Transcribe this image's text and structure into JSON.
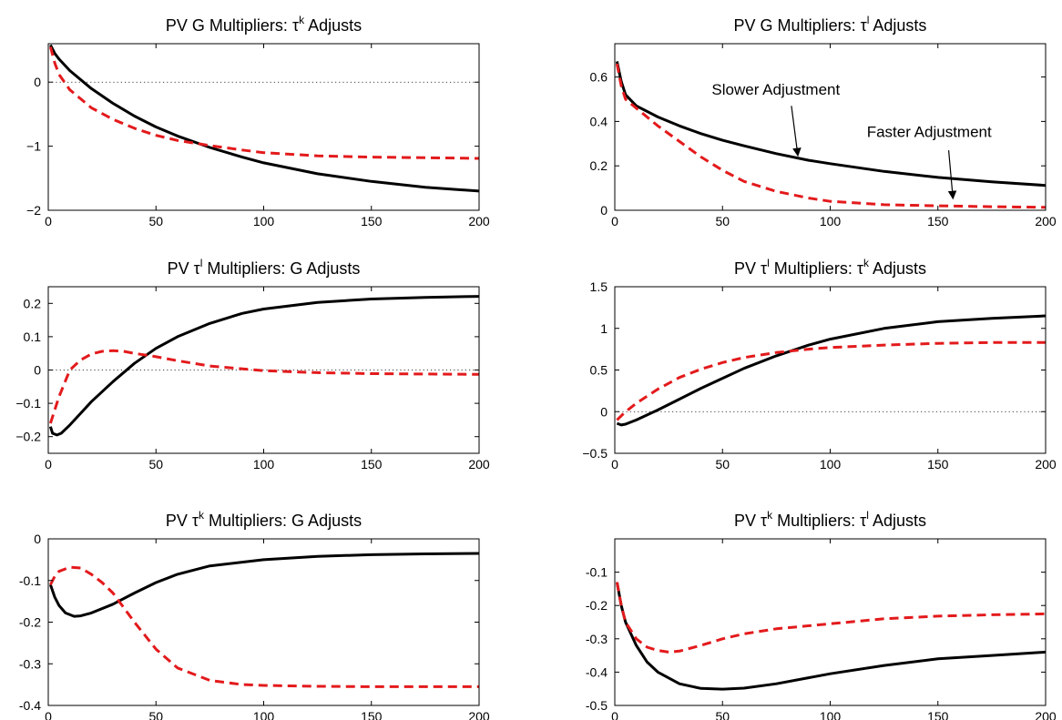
{
  "colors": {
    "series_solid": "#000000",
    "series_dashed": "#e31a1c",
    "zero_line": "#000000"
  },
  "chart_data": [
    {
      "type": "line",
      "title": {
        "pre": "PV G Multipliers: ",
        "sym": "τ",
        "sup": "k",
        "post": " Adjusts"
      },
      "xlim": [
        0,
        200
      ],
      "ylim": [
        -2,
        0.6
      ],
      "xticks": [
        0,
        50,
        100,
        150,
        200
      ],
      "yticks": [
        -2,
        -1,
        0
      ],
      "ytick_labels": [
        "−2",
        "−1",
        "0"
      ],
      "zero_line": true,
      "series": [
        {
          "style": "solid",
          "x": [
            1,
            3,
            5,
            10,
            20,
            30,
            40,
            50,
            60,
            75,
            90,
            100,
            125,
            150,
            175,
            200
          ],
          "y": [
            0.58,
            0.45,
            0.36,
            0.18,
            -0.1,
            -0.33,
            -0.53,
            -0.7,
            -0.84,
            -1.02,
            -1.17,
            -1.26,
            -1.43,
            -1.55,
            -1.64,
            -1.7
          ]
        },
        {
          "style": "dashed",
          "x": [
            1,
            3,
            5,
            10,
            20,
            30,
            40,
            50,
            60,
            75,
            90,
            100,
            125,
            150,
            175,
            200
          ],
          "y": [
            0.55,
            0.3,
            0.12,
            -0.12,
            -0.4,
            -0.58,
            -0.72,
            -0.83,
            -0.91,
            -0.99,
            -1.06,
            -1.1,
            -1.15,
            -1.17,
            -1.18,
            -1.19
          ]
        }
      ]
    },
    {
      "type": "line",
      "title": {
        "pre": "PV G Multipliers: ",
        "sym": "τ",
        "sup": "l",
        "post": " Adjusts"
      },
      "xlim": [
        0,
        200
      ],
      "ylim": [
        0,
        0.75
      ],
      "xticks": [
        0,
        50,
        100,
        150,
        200
      ],
      "yticks": [
        0,
        0.2,
        0.4,
        0.6
      ],
      "ytick_labels": [
        "0",
        "0.2",
        "0.4",
        "0.6"
      ],
      "zero_line": false,
      "series": [
        {
          "style": "solid",
          "x": [
            1,
            3,
            5,
            10,
            20,
            30,
            40,
            50,
            60,
            75,
            90,
            100,
            125,
            150,
            175,
            200
          ],
          "y": [
            0.67,
            0.58,
            0.52,
            0.47,
            0.42,
            0.38,
            0.345,
            0.315,
            0.29,
            0.255,
            0.225,
            0.21,
            0.175,
            0.148,
            0.128,
            0.112
          ]
        },
        {
          "style": "dashed",
          "x": [
            1,
            3,
            5,
            10,
            20,
            30,
            40,
            50,
            60,
            75,
            90,
            100,
            125,
            150,
            175,
            200
          ],
          "y": [
            0.66,
            0.56,
            0.5,
            0.46,
            0.38,
            0.31,
            0.24,
            0.18,
            0.13,
            0.085,
            0.055,
            0.04,
            0.025,
            0.02,
            0.016,
            0.013
          ]
        }
      ],
      "annotations": [
        {
          "text": "Slower Adjustment",
          "tx": 45,
          "ty": 0.52,
          "ax": 85,
          "ay": 0.245,
          "lx": 82,
          "ly": 0.47
        },
        {
          "text": "Faster Adjustment",
          "tx": 117,
          "ty": 0.33,
          "ax": 157,
          "ay": 0.052,
          "lx": 155,
          "ly": 0.27
        }
      ]
    },
    {
      "type": "line",
      "title": {
        "pre": "PV ",
        "sym": "τ",
        "sup": "l",
        "post": " Multipliers: G Adjusts"
      },
      "xlim": [
        0,
        200
      ],
      "ylim": [
        -0.25,
        0.25
      ],
      "xticks": [
        0,
        50,
        100,
        150,
        200
      ],
      "yticks": [
        -0.2,
        -0.1,
        0,
        0.1,
        0.2
      ],
      "ytick_labels": [
        "−0.2",
        "−0.1",
        "0",
        "0.1",
        "0.2"
      ],
      "zero_line": true,
      "series": [
        {
          "style": "solid",
          "x": [
            1,
            2,
            4,
            6,
            10,
            15,
            20,
            30,
            40,
            50,
            60,
            75,
            90,
            100,
            125,
            150,
            175,
            200
          ],
          "y": [
            -0.17,
            -0.19,
            -0.195,
            -0.19,
            -0.165,
            -0.13,
            -0.095,
            -0.035,
            0.02,
            0.065,
            0.1,
            0.14,
            0.17,
            0.183,
            0.203,
            0.213,
            0.218,
            0.221
          ]
        },
        {
          "style": "dashed",
          "x": [
            1,
            3,
            5,
            10,
            15,
            20,
            25,
            30,
            35,
            40,
            50,
            60,
            75,
            100,
            125,
            150,
            175,
            200
          ],
          "y": [
            -0.16,
            -0.12,
            -0.08,
            0.0,
            0.03,
            0.048,
            0.056,
            0.058,
            0.056,
            0.05,
            0.04,
            0.028,
            0.012,
            -0.002,
            -0.008,
            -0.011,
            -0.012,
            -0.013
          ]
        }
      ]
    },
    {
      "type": "line",
      "title": {
        "pre": "PV ",
        "sym": "τ",
        "sup": "l",
        "post": " Multipliers: ",
        "sym2": "τ",
        "sup2": "k",
        "post2": " Adjusts"
      },
      "xlim": [
        0,
        200
      ],
      "ylim": [
        -0.5,
        1.5
      ],
      "xticks": [
        0,
        50,
        100,
        150,
        200
      ],
      "yticks": [
        -0.5,
        0,
        0.5,
        1,
        1.5
      ],
      "ytick_labels": [
        "−0.5",
        "0",
        "0.5",
        "1",
        "1.5"
      ],
      "zero_line": true,
      "series": [
        {
          "style": "solid",
          "x": [
            1,
            3,
            5,
            10,
            20,
            30,
            40,
            50,
            60,
            75,
            90,
            100,
            125,
            150,
            175,
            200
          ],
          "y": [
            -0.14,
            -0.16,
            -0.15,
            -0.1,
            0.02,
            0.15,
            0.28,
            0.4,
            0.52,
            0.67,
            0.8,
            0.87,
            1.0,
            1.08,
            1.12,
            1.15
          ]
        },
        {
          "style": "dashed",
          "x": [
            1,
            3,
            5,
            10,
            20,
            30,
            40,
            50,
            60,
            75,
            90,
            100,
            125,
            150,
            175,
            200
          ],
          "y": [
            -0.1,
            -0.05,
            0.0,
            0.1,
            0.27,
            0.41,
            0.51,
            0.59,
            0.65,
            0.71,
            0.75,
            0.77,
            0.8,
            0.82,
            0.83,
            0.83
          ]
        }
      ]
    },
    {
      "type": "line",
      "title": {
        "pre": "PV ",
        "sym": "τ",
        "sup": "k",
        "post": " Multipliers: G Adjusts"
      },
      "xlim": [
        0,
        200
      ],
      "ylim": [
        -0.4,
        0
      ],
      "xticks": [
        0,
        50,
        100,
        150,
        200
      ],
      "yticks": [
        -0.4,
        -0.3,
        -0.2,
        -0.1,
        0
      ],
      "ytick_labels": [
        "-0.4",
        "-0.3",
        "-0.2",
        "-0.1",
        "0"
      ],
      "zero_line": false,
      "series": [
        {
          "style": "solid",
          "x": [
            1,
            3,
            5,
            8,
            12,
            15,
            20,
            30,
            40,
            50,
            60,
            75,
            100,
            125,
            150,
            175,
            200
          ],
          "y": [
            -0.11,
            -0.14,
            -0.16,
            -0.178,
            -0.186,
            -0.185,
            -0.178,
            -0.157,
            -0.13,
            -0.105,
            -0.085,
            -0.065,
            -0.05,
            -0.042,
            -0.038,
            -0.036,
            -0.035
          ]
        },
        {
          "style": "dashed",
          "x": [
            1,
            3,
            5,
            10,
            15,
            20,
            25,
            30,
            40,
            50,
            60,
            75,
            90,
            100,
            125,
            150,
            175,
            200
          ],
          "y": [
            -0.11,
            -0.09,
            -0.078,
            -0.068,
            -0.07,
            -0.085,
            -0.105,
            -0.13,
            -0.2,
            -0.265,
            -0.31,
            -0.34,
            -0.35,
            -0.352,
            -0.354,
            -0.355,
            -0.355,
            -0.355
          ]
        }
      ]
    },
    {
      "type": "line",
      "title": {
        "pre": "PV ",
        "sym": "τ",
        "sup": "k",
        "post": " Multipliers: ",
        "sym2": "τ",
        "sup2": "l",
        "post2": " Adjusts"
      },
      "xlim": [
        0,
        200
      ],
      "ylim": [
        -0.5,
        0
      ],
      "xticks": [
        0,
        50,
        100,
        150,
        200
      ],
      "yticks": [
        -0.5,
        -0.4,
        -0.3,
        -0.2,
        -0.1
      ],
      "ytick_labels": [
        "-0.5",
        "-0.4",
        "-0.3",
        "-0.2",
        "-0.1"
      ],
      "zero_line": false,
      "series": [
        {
          "style": "solid",
          "x": [
            1,
            3,
            5,
            10,
            15,
            20,
            30,
            40,
            50,
            60,
            75,
            100,
            125,
            150,
            175,
            200
          ],
          "y": [
            -0.13,
            -0.2,
            -0.25,
            -0.32,
            -0.37,
            -0.4,
            -0.435,
            -0.449,
            -0.451,
            -0.448,
            -0.435,
            -0.405,
            -0.38,
            -0.36,
            -0.35,
            -0.34
          ]
        },
        {
          "style": "dashed",
          "x": [
            1,
            3,
            5,
            10,
            15,
            20,
            25,
            30,
            40,
            50,
            60,
            75,
            100,
            125,
            150,
            175,
            200
          ],
          "y": [
            -0.13,
            -0.2,
            -0.25,
            -0.3,
            -0.325,
            -0.335,
            -0.34,
            -0.337,
            -0.32,
            -0.3,
            -0.285,
            -0.27,
            -0.255,
            -0.24,
            -0.232,
            -0.228,
            -0.225
          ]
        }
      ]
    }
  ]
}
